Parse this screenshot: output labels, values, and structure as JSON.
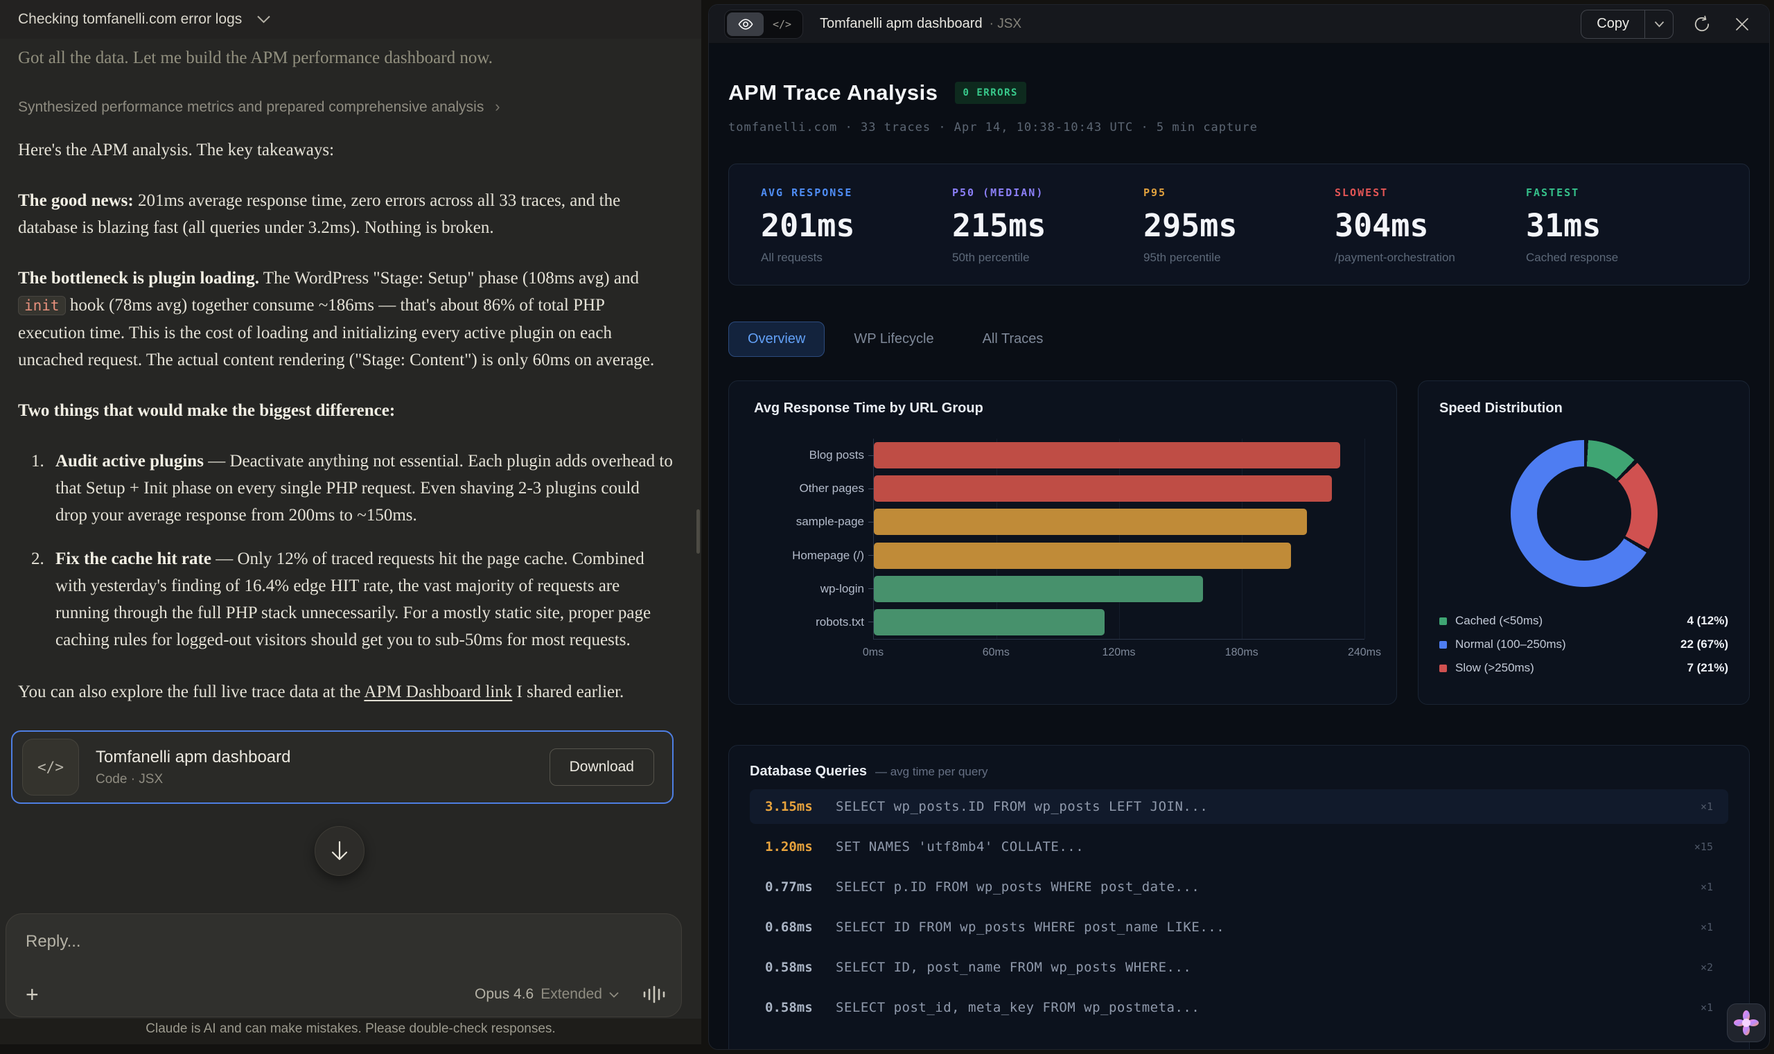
{
  "left": {
    "header": {
      "title": "Checking tomfanelli.com error logs"
    },
    "messages": {
      "faded_line": "Got all the data. Let me build the APM performance dashboard now.",
      "tool_summary": "Synthesized performance metrics and prepared comprehensive analysis",
      "intro": "Here's the APM analysis. The key takeaways:",
      "p1_bold": "The good news:",
      "p1_rest": " 201ms average response time, zero errors across all 33 traces, and the database is blazing fast (all queries under 3.2ms). Nothing is broken.",
      "p2_bold": "The bottleneck is plugin loading.",
      "p2_before_code": " The WordPress \"Stage: Setup\" phase (108ms avg) and ",
      "p2_code": "init",
      "p2_after_code": " hook (78ms avg) together consume ~186ms — that's about 86% of total PHP execution time. This is the cost of loading and initializing every active plugin on each uncached request. The actual content rendering (\"Stage: Content\") is only 60ms on average.",
      "p3_bold": "Two things that would make the biggest difference:",
      "list": [
        {
          "bold": "Audit active plugins",
          "rest": " — Deactivate anything not essential. Each plugin adds overhead to that Setup + Init phase on every single PHP request. Even shaving 2-3 plugins could drop your average response from 200ms to ~150ms."
        },
        {
          "bold": "Fix the cache hit rate",
          "rest": " — Only 12% of traced requests hit the page cache. Combined with yesterday's finding of 16.4% edge HIT rate, the vast majority of requests are running through the full PHP stack unnecessarily. For a mostly static site, proper page caching rules for logged-out visitors should get you to sub-50ms for most requests."
        }
      ],
      "outro_before": "You can also explore the full live trace data at the ",
      "outro_link": "APM Dashboard link",
      "outro_after": " I shared earlier."
    },
    "artifact_card": {
      "title": "Tomfanelli apm dashboard",
      "subtitle": "Code · JSX",
      "button": "Download"
    },
    "composer": {
      "placeholder": "Reply...",
      "model": "Opus 4.6",
      "mode": "Extended"
    },
    "footer": "Claude is AI and can make mistakes. Please double-check responses."
  },
  "panel": {
    "header": {
      "title": "Tomfanelli apm dashboard",
      "type": "JSX",
      "copy_label": "Copy"
    },
    "title": "APM Trace Analysis",
    "badge": "0 ERRORS",
    "meta": "tomfanelli.com · 33 traces · Apr 14, 10:38-10:43 UTC · 5 min capture",
    "stats": [
      {
        "label": "AVG RESPONSE",
        "value": "201ms",
        "sub": "All requests",
        "color": "#4f8df5"
      },
      {
        "label": "P50 (MEDIAN)",
        "value": "215ms",
        "sub": "50th percentile",
        "color": "#8b7ff7"
      },
      {
        "label": "P95",
        "value": "295ms",
        "sub": "95th percentile",
        "color": "#e0a13e"
      },
      {
        "label": "SLOWEST",
        "value": "304ms",
        "sub": "/payment-orchestration",
        "color": "#e25555"
      },
      {
        "label": "FASTEST",
        "value": "31ms",
        "sub": "Cached response",
        "color": "#35c08a"
      }
    ],
    "tabs": [
      {
        "label": "Overview",
        "active": true
      },
      {
        "label": "WP Lifecycle",
        "active": false
      },
      {
        "label": "All Traces",
        "active": false
      }
    ]
  },
  "chart_data": [
    {
      "type": "bar",
      "title": "Avg Response Time by URL Group",
      "categories": [
        "Blog posts",
        "Other pages",
        "sample-page",
        "Homepage (/)",
        "wp-login",
        "robots.txt"
      ],
      "values": [
        228,
        224,
        212,
        204,
        161,
        113
      ],
      "unit": "ms",
      "xlim": [
        0,
        240
      ],
      "ticks": [
        "0ms",
        "60ms",
        "120ms",
        "180ms",
        "240ms"
      ],
      "colors": [
        "#bf4d45",
        "#bf4d45",
        "#c08b38",
        "#c08b38",
        "#47916c",
        "#47916c"
      ],
      "grid": true,
      "orientation": "horizontal"
    },
    {
      "type": "pie",
      "title": "Speed Distribution",
      "ring": [
        {
          "label": "Cached (<50ms)",
          "pct": 12,
          "color": "#3fa573"
        },
        {
          "label": "Slow (>250ms)",
          "pct": 21,
          "color": "#d05150"
        },
        {
          "label": "Normal (100–250ms)",
          "pct": 67,
          "color": "#4e7df2"
        }
      ],
      "legend": [
        {
          "label": "Cached (<50ms)",
          "value": "4 (12%)",
          "color": "#3fa573"
        },
        {
          "label": "Normal (100–250ms)",
          "value": "22 (67%)",
          "color": "#4e7df2"
        },
        {
          "label": "Slow (>250ms)",
          "value": "7 (21%)",
          "color": "#d05150"
        }
      ]
    },
    {
      "type": "table",
      "title": "Database Queries",
      "subtitle": "— avg time per query",
      "rows": [
        {
          "time": "3.15ms",
          "sql": "SELECT wp_posts.ID FROM wp_posts LEFT JOIN...",
          "count": "×1",
          "slow": true,
          "highlight": true
        },
        {
          "time": "1.20ms",
          "sql": "SET NAMES 'utf8mb4' COLLATE...",
          "count": "×15",
          "slow": true,
          "highlight": false
        },
        {
          "time": "0.77ms",
          "sql": "SELECT p.ID FROM wp_posts WHERE post_date...",
          "count": "×1",
          "slow": false,
          "highlight": false
        },
        {
          "time": "0.68ms",
          "sql": "SELECT ID FROM wp_posts WHERE post_name LIKE...",
          "count": "×1",
          "slow": false,
          "highlight": false
        },
        {
          "time": "0.58ms",
          "sql": "SELECT ID, post_name FROM wp_posts WHERE...",
          "count": "×2",
          "slow": false,
          "highlight": false
        },
        {
          "time": "0.58ms",
          "sql": "SELECT post_id, meta_key FROM wp_postmeta...",
          "count": "×1",
          "slow": false,
          "highlight": false
        }
      ],
      "colors": {
        "slow_time": "#e8a33d",
        "normal_time": "#aab4c4"
      }
    }
  ]
}
